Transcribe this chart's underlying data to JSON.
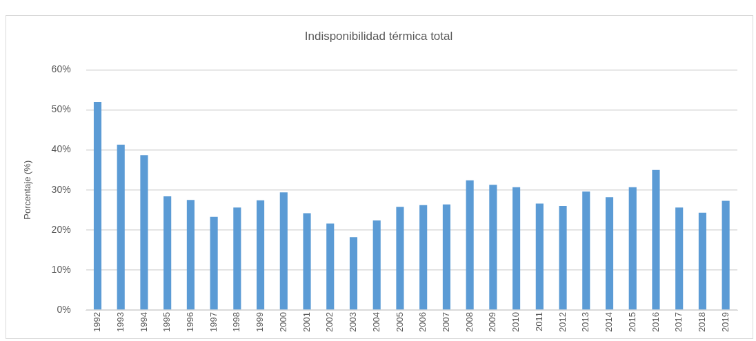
{
  "chart_data": {
    "type": "bar",
    "title": "Indisponibilidad térmica total",
    "ylabel": "Porcentaje (%)",
    "categories": [
      "1992",
      "1993",
      "1994",
      "1995",
      "1996",
      "1997",
      "1998",
      "1999",
      "2000",
      "2001",
      "2002",
      "2003",
      "2004",
      "2005",
      "2006",
      "2007",
      "2008",
      "2009",
      "2010",
      "2011",
      "2012",
      "2013",
      "2014",
      "2015",
      "2016",
      "2017",
      "2018",
      "2019"
    ],
    "values": [
      52,
      41.3,
      38.7,
      28.4,
      27.5,
      23.3,
      25.6,
      27.4,
      29.4,
      24.2,
      21.6,
      18.2,
      22.4,
      25.8,
      26.2,
      26.4,
      32.4,
      31.3,
      30.7,
      26.6,
      26,
      29.6,
      28.2,
      30.7,
      35,
      25.6,
      24.3,
      27.3
    ],
    "color": "#5b9bd5",
    "ylim": [
      0,
      60
    ],
    "yticks": [
      {
        "value": 0,
        "label": "0%"
      },
      {
        "value": 10,
        "label": "10%"
      },
      {
        "value": 20,
        "label": "20%"
      },
      {
        "value": 30,
        "label": "30%"
      },
      {
        "value": 40,
        "label": "40%"
      },
      {
        "value": 50,
        "label": "50%"
      },
      {
        "value": 60,
        "label": "60%"
      }
    ],
    "grid": "y",
    "legend": false
  }
}
